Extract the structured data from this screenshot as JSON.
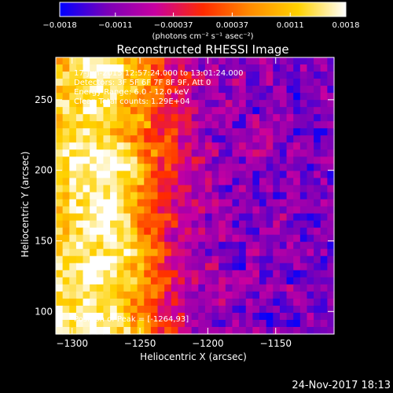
{
  "chart_data": {
    "type": "heatmap",
    "title": "Reconstructed RHESSI Image",
    "xlabel": "Heliocentric X (arcsec)",
    "ylabel": "Heliocentric Y (arcsec)",
    "xlim": [
      -1312,
      -1107
    ],
    "ylim": [
      84,
      280
    ],
    "x_ticks": [
      -1300,
      -1250,
      -1200,
      -1150
    ],
    "x_tick_labels": [
      "−1300",
      "−1250",
      "−1200",
      "−1150"
    ],
    "y_ticks": [
      100,
      150,
      200,
      250
    ],
    "y_tick_labels": [
      "100",
      "150",
      "200",
      "250"
    ],
    "colorbar": {
      "ticks": [
        -0.0018,
        -0.0011,
        -0.00037,
        0.00037,
        0.0011,
        0.0018
      ],
      "tick_labels": [
        "−0.0018",
        "−0.0011",
        "−0.00037",
        "0.00037",
        "0.0011",
        "0.0018"
      ],
      "range": [
        -0.0018,
        0.0018
      ],
      "unit_label": "(photons cm⁻² s⁻¹ asec⁻²)",
      "colors": [
        "#0000ff",
        "#7a00b8",
        "#c800a0",
        "#ff2a00",
        "#ff8c00",
        "#ffd200",
        "#ffffff"
      ]
    },
    "info_lines": [
      "17-Jun-2015 12:57:24.000 to 13:01:24.000",
      "Detectors: 3F 5F 6F 7F 8F 9F, Att 0",
      "Energy Range: 6.0 - 12.0 keV",
      "Clean     Total counts: 1.29E+04"
    ],
    "peak_label": "Position of Peak = [-1264,93]",
    "peak_position": [
      -1264,
      93
    ],
    "footer_date": "24-Nov-2017 18:13",
    "pixel_grid": {
      "cols": 41,
      "rows": 39
    }
  }
}
